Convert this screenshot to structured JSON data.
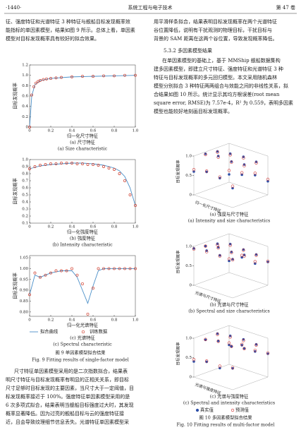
{
  "header": {
    "page": "·1440·",
    "journal": "系统工程与电子技术",
    "volume": "第 47 卷"
  },
  "left_top": [
    "征、强度特征和光谱特征 3 种特征与舰船目标发现概率效",
    "能指标的单因素模型，结果如图 9 所示。总体上看，单因素",
    "模型对目标发现概率具有较好的拟合效果。"
  ],
  "fig9": {
    "zh": "图 9    单因素模型拟合结果",
    "en": "Fig. 9    Fitting results of single-factor model"
  },
  "left_bottom": [
    "尺寸特征单因素模型采用的是二次指数拟合，结果表",
    "明尺寸特征与目标发现概率有明显的正相关关系，即目标",
    "尺寸足够时目标发现的主要因素，当尺寸大于一定阈值，目",
    "标发现概率接近于 100%。强度特征单因素模型采用的是",
    "6 次多项式拟合，结果表明当舰船目标强度过大时，其发现",
    "概率显著降低。因为过亮的舰船目标与云的强度特征接",
    "近，且会导致纹理细节信息丢失。光谱特征单因素模型采"
  ],
  "right_top": [
    "用平滑样条拟合，结果表明目标发现概率在两个光谱特征",
    "谷位置降低，说明有干扰观测的物理目标，干扰目标与",
    "背景的 SAM 距离在这两个谷位置，导致发现概率降低。"
  ],
  "section": "5.3.2    多因素模型结果",
  "right_mid": [
    "在单因素模型的基础上，基于 MMShip 舰船数据集构",
    "建多因素模型，即建立尺寸特征、强度特征和光谱特征 3 种",
    "特征与目标发现概率的多元回归模型。本文采用随机森林",
    "模型分别拟合 3 种特征两两组合与效能之间的非线性关系，拟",
    "合结果如图 10 所示。统计显示其均方根误差(root mean",
    "square error, RMSE)为 7.57e-4，R² 为 0.559，表明多因素",
    "模型也能较好地刻画目标发现概率。"
  ],
  "fig10": {
    "zh": "图 10    多因素模型拟合结果",
    "en": "Fig. 10    Fitting results of multi-factor model"
  },
  "chart_data": [
    {
      "type": "scatter",
      "ylabel": "目标发现概率",
      "xlabel": "归一化尺寸特征",
      "caption_zh": "(a) 尺寸特征",
      "caption_en": "(a) Size characteristic",
      "xlim": [
        0,
        1
      ],
      "ylim": [
        0,
        1.2
      ],
      "xticks": [
        0,
        0.2,
        0.4,
        0.6,
        0.8,
        {
          "value": 1,
          "label": "1.0"
        }
      ],
      "yticks": [
        0,
        0.2,
        0.4,
        0.6,
        0.8,
        {
          "value": 1,
          "label": "1.0"
        },
        1.2
      ],
      "series": [
        {
          "mode": "line",
          "color": "#4a8fc8",
          "x": [
            0,
            0.02,
            0.05,
            0.1,
            0.2,
            0.4,
            0.6,
            0.8,
            1.0
          ],
          "values": [
            0,
            0.6,
            0.82,
            0.9,
            0.94,
            0.97,
            0.98,
            0.99,
            1.0
          ]
        },
        {
          "mode": "markers",
          "color": "#d04030",
          "x": [
            0,
            0.02,
            0.04,
            0.06,
            0.08,
            0.1,
            0.13,
            0.16,
            0.2,
            0.25,
            0.3,
            0.4,
            0.5,
            0.6,
            0.7,
            0.8,
            0.9,
            1.0
          ],
          "values": [
            0,
            0.62,
            0.78,
            0.85,
            0.88,
            0.9,
            0.92,
            0.93,
            0.94,
            0.95,
            0.96,
            0.97,
            0.98,
            0.98,
            0.99,
            0.99,
            1.0,
            1.0
          ]
        }
      ]
    },
    {
      "type": "scatter",
      "ylabel": "目标发现概率",
      "xlabel": "归一化强度特征",
      "caption_zh": "(b) 强度特征",
      "caption_en": "(b) Intensity characteristic",
      "xlim": [
        0,
        1
      ],
      "ylim": [
        0.1,
        1.0
      ],
      "xticks": [
        0,
        0.2,
        0.4,
        0.6,
        0.8,
        {
          "value": 1,
          "label": "1.0"
        }
      ],
      "yticks": [
        0.1,
        0.2,
        0.3,
        0.4,
        0.5,
        0.6,
        0.7,
        0.8,
        0.9,
        {
          "value": 1,
          "label": "1.0"
        }
      ],
      "series": [
        {
          "mode": "line",
          "color": "#4a8fc8",
          "x": [
            0,
            0.1,
            0.2,
            0.3,
            0.4,
            0.5,
            0.6,
            0.7,
            0.8,
            0.85,
            0.9,
            0.95,
            1.0
          ],
          "values": [
            0.87,
            0.91,
            0.93,
            0.94,
            0.95,
            0.95,
            0.94,
            0.92,
            0.88,
            0.84,
            0.76,
            0.6,
            0.35
          ]
        },
        {
          "mode": "markers",
          "color": "#d04030",
          "x": [
            0,
            0.05,
            0.1,
            0.15,
            0.2,
            0.25,
            0.3,
            0.35,
            0.4,
            0.45,
            0.5,
            0.55,
            0.6,
            0.65,
            0.7,
            0.75,
            0.8,
            0.85,
            0.9,
            0.95,
            1.0
          ],
          "values": [
            0.87,
            0.9,
            0.92,
            0.93,
            0.94,
            0.94,
            0.95,
            0.95,
            0.95,
            0.94,
            0.94,
            0.93,
            0.93,
            0.92,
            0.9,
            0.88,
            0.86,
            0.8,
            0.7,
            0.5,
            0.35
          ]
        }
      ]
    },
    {
      "type": "scatter",
      "ylabel": "目标发现概率",
      "xlabel": "归一化光谱特征",
      "caption_zh": "(c) 光谱特征",
      "caption_en": "(c) Spectral characteristic",
      "xlim": [
        0,
        1
      ],
      "ylim": [
        0.78,
        1.06
      ],
      "xticks": [
        0,
        0.2,
        0.4,
        0.6,
        0.8,
        {
          "value": 1,
          "label": "1.0"
        }
      ],
      "yticks": [
        {
          "value": 0.8,
          "label": "0.80"
        },
        0.85,
        {
          "value": 0.9,
          "label": "0.90"
        },
        0.95,
        {
          "value": 1,
          "label": "1.00"
        },
        1.05
      ],
      "series": [
        {
          "name": "拟合曲线",
          "mode": "line",
          "color": "#4a8fc8",
          "x": [
            0,
            0.05,
            0.1,
            0.2,
            0.3,
            0.4,
            0.45,
            0.5,
            0.55,
            0.6,
            0.65,
            0.7,
            0.8,
            1.0
          ],
          "values": [
            0.88,
            0.97,
            0.96,
            0.98,
            0.99,
            0.99,
            0.96,
            0.9,
            0.84,
            0.92,
            0.99,
            1.0,
            1.0,
            1.0
          ]
        },
        {
          "name": "训练数据",
          "mode": "markers",
          "color": "#d04030",
          "x": [
            0,
            0.05,
            0.1,
            0.15,
            0.2,
            0.25,
            0.3,
            0.35,
            0.4,
            0.45,
            0.5,
            0.55,
            0.6,
            0.65,
            0.7,
            0.75,
            0.8,
            0.85,
            0.9,
            0.95,
            1.0
          ],
          "values": [
            0.88,
            0.98,
            0.96,
            0.97,
            0.98,
            0.99,
            0.99,
            0.99,
            1.0,
            0.97,
            0.93,
            0.79,
            0.91,
            1.0,
            1.0,
            1.0,
            1.0,
            1.0,
            1.0,
            1.0,
            1.0
          ]
        }
      ]
    },
    {
      "type": "scatter3d",
      "zlabel": "目标发现概率",
      "xlabel": "归一化尺寸特征",
      "caption_zh": "(a) 强度与尺寸特征",
      "caption_en": "(a) Intensity and size characteristics",
      "zlim": [
        0,
        1
      ],
      "zticks": [
        0,
        0.5,
        {
          "value": 1,
          "label": "1.0"
        }
      ],
      "x": [
        0,
        0,
        0,
        0,
        0.33,
        0.33,
        0.33,
        0.33,
        0.67,
        0.67,
        0.67,
        0.67,
        1,
        1,
        1,
        1
      ],
      "y": [
        0,
        0.33,
        0.67,
        1,
        0,
        0.33,
        0.67,
        1,
        0,
        0.33,
        0.67,
        1,
        0,
        0.33,
        0.67,
        1
      ],
      "series": [
        {
          "color": "#2d4fa8",
          "values": [
            0.2,
            0.9,
            0.95,
            0.6,
            0.3,
            0.95,
            1.0,
            0.7,
            0.4,
            0.98,
            0.97,
            0.65,
            0.35,
            0.96,
            1.0,
            0.5
          ]
        },
        {
          "color": "#d03030",
          "values": [
            0.3,
            0.88,
            0.93,
            0.65,
            0.35,
            0.92,
            0.97,
            0.72,
            0.45,
            0.95,
            0.95,
            0.68,
            0.4,
            0.93,
            0.97,
            0.55
          ]
        }
      ]
    },
    {
      "type": "scatter3d",
      "zlabel": "目标发现概率",
      "xlabel": "光谱与尺寸特征",
      "caption_zh": "(b) 光谱与尺寸特征",
      "caption_en": "(b) Spectral and size characteristics",
      "zlim": [
        0,
        1
      ],
      "zticks": [
        0,
        0.5,
        {
          "value": 1,
          "label": "1.0"
        }
      ],
      "x": [
        0,
        0,
        0,
        0,
        0.33,
        0.33,
        0.33,
        0.33,
        0.67,
        0.67,
        0.67,
        0.67,
        1,
        1,
        1,
        1
      ],
      "y": [
        0,
        0.33,
        0.67,
        1,
        0,
        0.33,
        0.67,
        1,
        0,
        0.33,
        0.67,
        1,
        0,
        0.33,
        0.67,
        1
      ],
      "series": [
        {
          "color": "#2d4fa8",
          "values": [
            0.3,
            0.85,
            0.9,
            0.95,
            0.5,
            0.95,
            0.98,
            1.0,
            0.45,
            0.92,
            0.97,
            0.99,
            0.6,
            0.9,
            1.0,
            1.0
          ]
        },
        {
          "color": "#d03030",
          "values": [
            0.35,
            0.82,
            0.9,
            0.93,
            0.55,
            0.92,
            0.96,
            0.97,
            0.5,
            0.9,
            0.95,
            0.97,
            0.62,
            0.88,
            0.97,
            0.98
          ]
        }
      ]
    },
    {
      "type": "scatter3d",
      "zlabel": "目标发现概率",
      "xlabel": "光谱与强度特征",
      "caption_zh": "(c) 光谱与强度特征",
      "caption_en": "(c) Spectral and intensity characteristics",
      "zlim": [
        0,
        1
      ],
      "zticks": [
        0,
        0.5,
        {
          "value": 1,
          "label": "1.0"
        }
      ],
      "x": [
        0,
        0,
        0,
        0,
        0.33,
        0.33,
        0.33,
        0.33,
        0.67,
        0.67,
        0.67,
        0.67,
        1,
        1,
        1,
        1
      ],
      "y": [
        0,
        0.33,
        0.67,
        1,
        0,
        0.33,
        0.67,
        1,
        0,
        0.33,
        0.67,
        1,
        0,
        0.33,
        0.67,
        1
      ],
      "series": [
        {
          "name": "真实值",
          "color": "#2d4fa8",
          "values": [
            0.5,
            0.9,
            0.85,
            0.4,
            0.6,
            0.95,
            0.93,
            0.5,
            0.55,
            0.97,
            0.9,
            0.45,
            0.6,
            0.95,
            0.96,
            0.55
          ]
        },
        {
          "name": "预测值",
          "color": "#d03030",
          "values": [
            0.55,
            0.88,
            0.86,
            0.45,
            0.62,
            0.92,
            0.92,
            0.52,
            0.58,
            0.94,
            0.9,
            0.5,
            0.62,
            0.93,
            0.95,
            0.57
          ]
        }
      ]
    }
  ]
}
